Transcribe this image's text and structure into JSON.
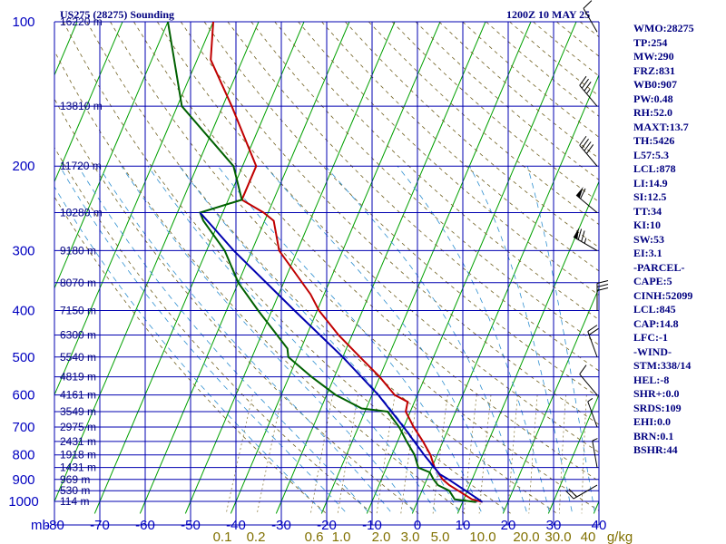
{
  "chart_data": {
    "type": "line",
    "title_left": "US275 (28275) Sounding",
    "title_right": "1200Z 10 MAY 25",
    "pressure_ticks": [
      100,
      200,
      300,
      400,
      500,
      600,
      700,
      800,
      900,
      1000
    ],
    "pressure_range": [
      100,
      1050
    ],
    "temperature_ticks": [
      -80,
      -70,
      -60,
      -50,
      -40,
      -30,
      -20,
      -10,
      0,
      10,
      20,
      30,
      40
    ],
    "temperature_tick_labels": [
      "-80",
      "-70",
      "-60",
      "-50",
      "-40",
      "-30",
      "-20",
      "-10",
      "0",
      "10",
      "20",
      "30",
      "40"
    ],
    "temperature_range": [
      -80,
      40
    ],
    "pressure_unit_label": "mb",
    "mixing_ratio_labels": [
      "0.1",
      "0.2",
      "0.6",
      "1.0",
      "2.0",
      "3.0",
      "5.0",
      "10.0",
      "20.0",
      "30.0",
      "40",
      "g/kg"
    ],
    "height_labels": [
      {
        "p": 100,
        "label": "16220 m"
      },
      {
        "p": 150,
        "label": "13810 m"
      },
      {
        "p": 200,
        "label": "11720 m"
      },
      {
        "p": 250,
        "label": "10280 m"
      },
      {
        "p": 300,
        "label": "9180 m"
      },
      {
        "p": 350,
        "label": "8070 m"
      },
      {
        "p": 400,
        "label": "7150 m"
      },
      {
        "p": 450,
        "label": "6300 m"
      },
      {
        "p": 500,
        "label": "5540 m"
      },
      {
        "p": 550,
        "label": "4819 m"
      },
      {
        "p": 600,
        "label": "4161 m"
      },
      {
        "p": 650,
        "label": "3549 m"
      },
      {
        "p": 700,
        "label": "2975 m"
      },
      {
        "p": 750,
        "label": "2431 m"
      },
      {
        "p": 800,
        "label": "1918 m"
      },
      {
        "p": 850,
        "label": "1431 m"
      },
      {
        "p": 900,
        "label": "969 m"
      },
      {
        "p": 950,
        "label": "530 m"
      },
      {
        "p": 1000,
        "label": "114 m"
      }
    ],
    "series": [
      {
        "role": "temperature",
        "color": "#c00000",
        "points": [
          [
            1003,
            14.4
          ],
          [
            990,
            11.8
          ],
          [
            950,
            8.0
          ],
          [
            925,
            5.5
          ],
          [
            900,
            3.5
          ],
          [
            850,
            0.6
          ],
          [
            800,
            -1.5
          ],
          [
            750,
            -4.4
          ],
          [
            700,
            -7.8
          ],
          [
            650,
            -11.0
          ],
          [
            620,
            -11.5
          ],
          [
            600,
            -15.0
          ],
          [
            550,
            -20.0
          ],
          [
            500,
            -26.2
          ],
          [
            450,
            -33.0
          ],
          [
            400,
            -39.6
          ],
          [
            370,
            -43.0
          ],
          [
            300,
            -54.0
          ],
          [
            260,
            -58.0
          ],
          [
            250,
            -61.0
          ],
          [
            235,
            -67.0
          ],
          [
            200,
            -67.0
          ],
          [
            150,
            -78.0
          ],
          [
            120,
            -87.0
          ],
          [
            100,
            -90.0
          ]
        ]
      },
      {
        "role": "dewpoint",
        "color": "#006000",
        "points": [
          [
            1003,
            13.0
          ],
          [
            990,
            8.0
          ],
          [
            950,
            6.0
          ],
          [
            925,
            3.0
          ],
          [
            900,
            1.5
          ],
          [
            870,
            0.0
          ],
          [
            850,
            -3.0
          ],
          [
            800,
            -5.0
          ],
          [
            750,
            -8.0
          ],
          [
            700,
            -11.0
          ],
          [
            650,
            -15.0
          ],
          [
            640,
            -21.0
          ],
          [
            600,
            -28.0
          ],
          [
            550,
            -35.0
          ],
          [
            500,
            -42.0
          ],
          [
            480,
            -43.0
          ],
          [
            400,
            -53.0
          ],
          [
            350,
            -60.0
          ],
          [
            300,
            -66.0
          ],
          [
            260,
            -73.5
          ],
          [
            250,
            -75.0
          ],
          [
            235,
            -67.0
          ],
          [
            200,
            -72.0
          ],
          [
            150,
            -89.0
          ],
          [
            100,
            -100.0
          ]
        ]
      },
      {
        "role": "parcel",
        "color": "#0000b0",
        "points": [
          [
            1003,
            14.4
          ],
          [
            950,
            9.6
          ],
          [
            900,
            4.8
          ],
          [
            878,
            2.4
          ],
          [
            800,
            -2.9
          ],
          [
            700,
            -10.0
          ],
          [
            600,
            -18.6
          ],
          [
            500,
            -30.0
          ],
          [
            400,
            -45.0
          ],
          [
            300,
            -64.0
          ],
          [
            250,
            -75.0
          ]
        ]
      }
    ],
    "wind_barbs": [
      {
        "p": 105,
        "dir": 330,
        "speed": 10
      },
      {
        "p": 150,
        "dir": 320,
        "speed": 35
      },
      {
        "p": 200,
        "dir": 320,
        "speed": 40
      },
      {
        "p": 250,
        "dir": 310,
        "speed": 60
      },
      {
        "p": 300,
        "dir": 300,
        "speed": 75
      },
      {
        "p": 400,
        "dir": 360,
        "speed": 30
      },
      {
        "p": 500,
        "dir": 340,
        "speed": 20
      },
      {
        "p": 600,
        "dir": 320,
        "speed": 10
      },
      {
        "p": 700,
        "dir": 340,
        "speed": 5
      },
      {
        "p": 850,
        "dir": 350,
        "speed": 5
      },
      {
        "p": 925,
        "dir": 240,
        "speed": 20
      }
    ],
    "indices": [
      "WMO:28275",
      "TP:254",
      "MW:290",
      "FRZ:831",
      "WB0:907",
      "PW:0.48",
      "RH:52.0",
      "MAXT:13.7",
      "TH:5426",
      "L57:5.3",
      "LCL:878",
      "LI:14.9",
      "SI:12.5",
      "TT:34",
      "KI:10",
      "SW:53",
      "EI:3.1",
      "-PARCEL-",
      "CAPE:5",
      "CINH:52099",
      "LCL:845",
      "CAP:14.8",
      "LFC:-1",
      "-WIND-",
      "STM:338/14",
      "HEL:-8",
      "SHR+:0.0",
      "SRDS:109",
      "EHI:0.0",
      "BRN:0.1",
      "BSHR:44"
    ]
  }
}
